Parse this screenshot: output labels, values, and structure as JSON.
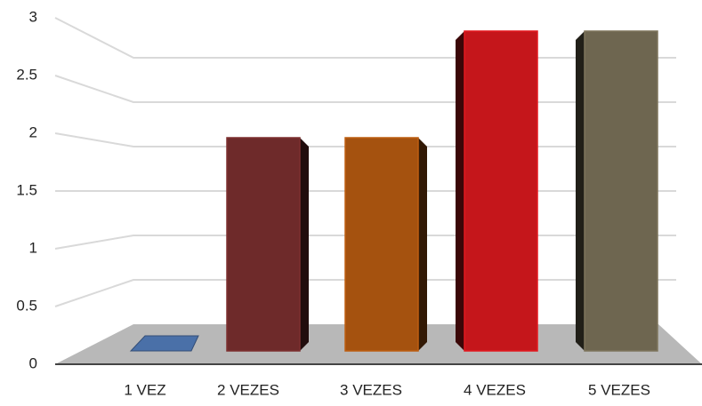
{
  "chart_data": {
    "type": "bar3d",
    "categories": [
      "1 VEZ",
      "2 VEZES",
      "3 VEZES",
      "4 VEZES",
      "5 VEZES"
    ],
    "values": [
      0,
      2,
      2,
      3,
      3
    ],
    "colors": [
      "#4a70a8",
      "#6e2a2a",
      "#a5520f",
      "#c5161b",
      "#6e6650"
    ],
    "ylim": [
      0,
      3
    ],
    "yticks": [
      0,
      0.5,
      1,
      1.5,
      2,
      2.5,
      3
    ],
    "grid": true
  }
}
